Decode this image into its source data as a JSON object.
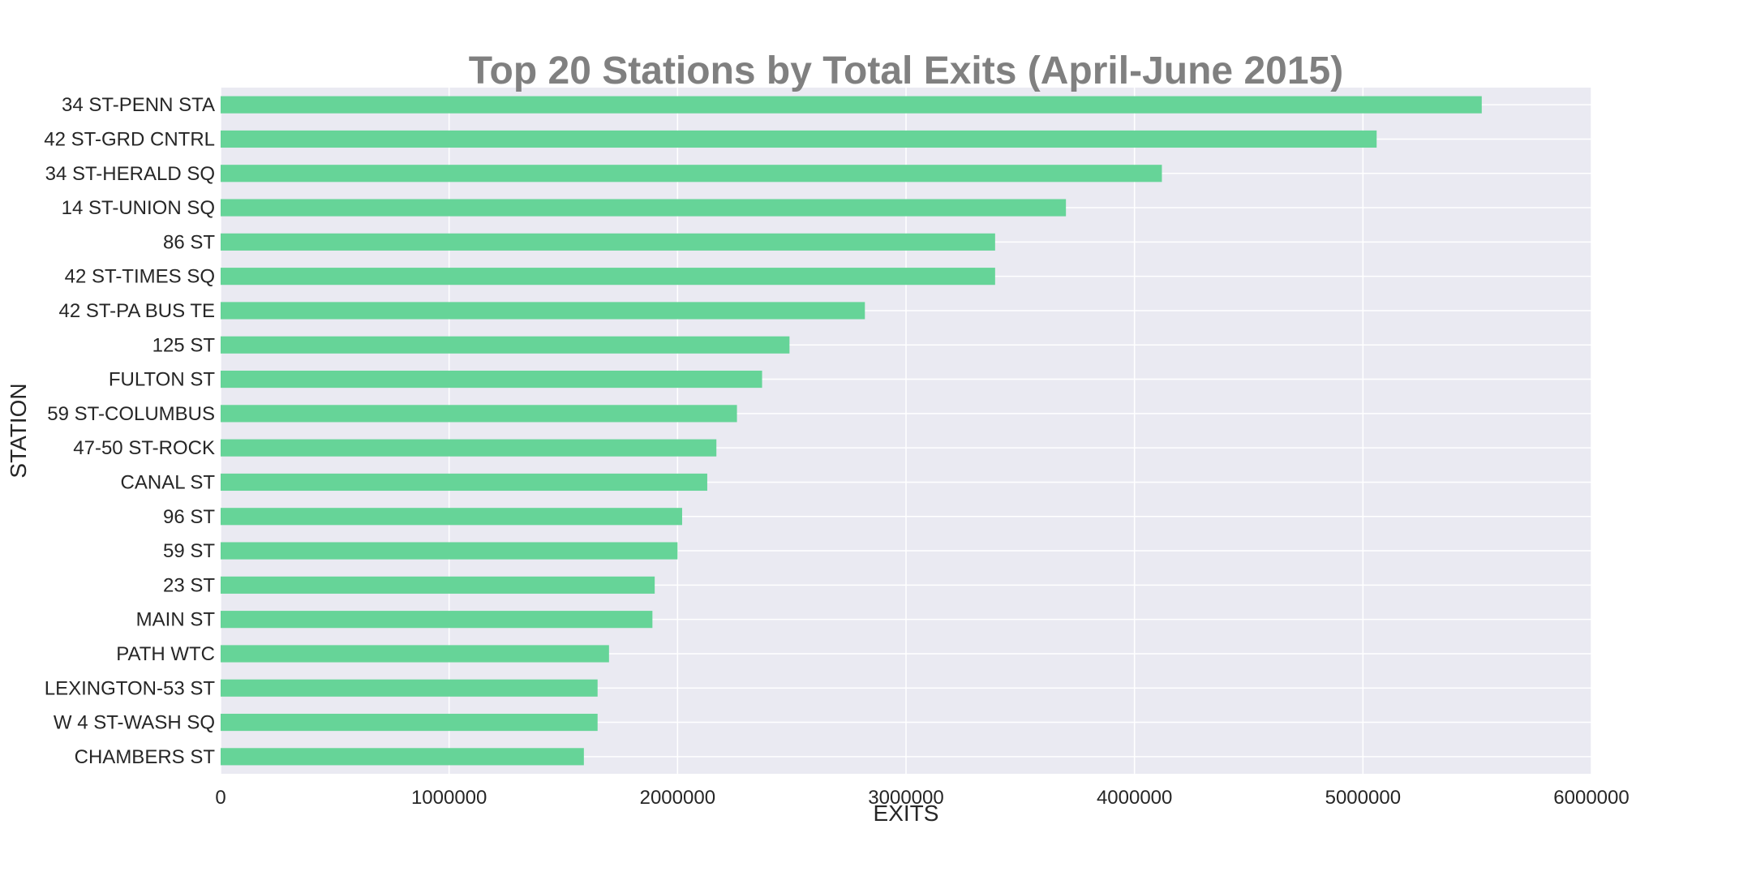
{
  "chart_data": {
    "type": "bar",
    "orientation": "horizontal",
    "title": "Top 20 Stations by Total Exits (April-June 2015)",
    "xlabel": "EXITS",
    "ylabel": "STATION",
    "xlim": [
      0,
      6000000
    ],
    "xticks": [
      "0",
      "1000000",
      "2000000",
      "3000000",
      "4000000",
      "5000000",
      "6000000"
    ],
    "grid": true,
    "bar_color": "#66d498",
    "background_color": "#eaeaf2",
    "categories": [
      "34 ST-PENN STA",
      "42 ST-GRD CNTRL",
      "34 ST-HERALD SQ",
      "14 ST-UNION SQ",
      "86 ST",
      "42 ST-TIMES SQ",
      "42 ST-PA BUS TE",
      "125 ST",
      "FULTON ST",
      "59 ST-COLUMBUS",
      "47-50 ST-ROCK",
      "CANAL ST",
      "96 ST",
      "59 ST",
      "23 ST",
      "MAIN ST",
      "PATH WTC",
      "LEXINGTON-53 ST",
      "W 4 ST-WASH SQ",
      "CHAMBERS ST"
    ],
    "values": [
      5520000,
      5060000,
      4120000,
      3700000,
      3390000,
      3390000,
      2820000,
      2490000,
      2370000,
      2260000,
      2170000,
      2130000,
      2020000,
      2000000,
      1900000,
      1890000,
      1700000,
      1650000,
      1650000,
      1590000
    ]
  }
}
